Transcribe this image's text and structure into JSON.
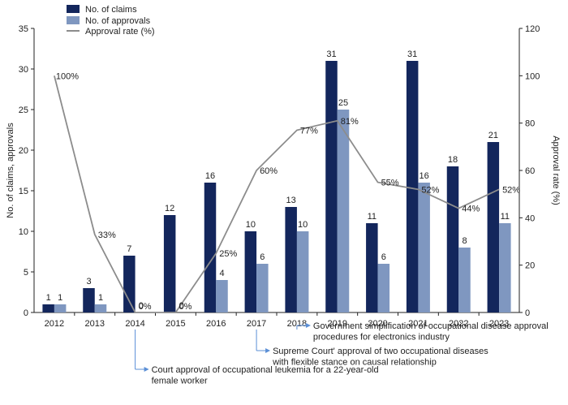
{
  "chart_data": {
    "type": "bar",
    "categories": [
      "2012",
      "2013",
      "2014",
      "2015",
      "2016",
      "2017",
      "2018",
      "2019",
      "2020",
      "2021",
      "2022",
      "2023"
    ],
    "series": [
      {
        "name": "No. of claims",
        "kind": "bar",
        "color": "#13265c",
        "values": [
          1,
          3,
          7,
          12,
          16,
          10,
          13,
          31,
          11,
          31,
          18,
          21
        ]
      },
      {
        "name": "No. of approvals",
        "kind": "bar",
        "color": "#7f97c0",
        "values": [
          1,
          1,
          0,
          0,
          4,
          6,
          10,
          25,
          6,
          16,
          8,
          11
        ]
      },
      {
        "name": "Approval rate (%)",
        "kind": "line",
        "axis": "right",
        "color": "#8c8c8c",
        "values": [
          100,
          33,
          0,
          0,
          25,
          60,
          77,
          81,
          55,
          52,
          44,
          52
        ]
      }
    ],
    "claim_labels": [
      "1",
      "3",
      "7",
      "12",
      "16",
      "10",
      "13",
      "31",
      "11",
      "31",
      "18",
      "21"
    ],
    "approval_labels": [
      "1",
      "1",
      "0",
      "0",
      "4",
      "6",
      "10",
      "25",
      "6",
      "16",
      "8",
      "11"
    ],
    "rate_labels": [
      "100%",
      "33%",
      "0%",
      "0%",
      "25%",
      "60%",
      "77%",
      "81%",
      "55%",
      "52%",
      "44%",
      "52%"
    ],
    "ylabel": "No. of claims, approvals",
    "y2label": "Approval rate (%)",
    "ylim": [
      0,
      35
    ],
    "y2lim": [
      0,
      120
    ],
    "yticks": [
      "0",
      "5",
      "10",
      "15",
      "20",
      "25",
      "30",
      "35"
    ],
    "y2ticks": [
      "0",
      "20",
      "40",
      "60",
      "80",
      "100",
      "120"
    ],
    "legend": {
      "placement": "top-left",
      "items": [
        "No. of claims",
        "No. of approvals",
        "Approval rate (%)"
      ]
    },
    "annotations": [
      {
        "year": "2014",
        "lines": [
          "Court approval of occupational leukemia for a 22-year-old",
          "female worker"
        ]
      },
      {
        "year": "2017",
        "lines": [
          "Supreme Court' approval of two occupational diseases",
          "with flexible stance on causal relationship"
        ]
      },
      {
        "year": "2018",
        "lines": [
          "Government simplification of occupational disease approval",
          "procedures for electronics industry"
        ]
      }
    ],
    "arrow_color": "#5b8fd6"
  }
}
